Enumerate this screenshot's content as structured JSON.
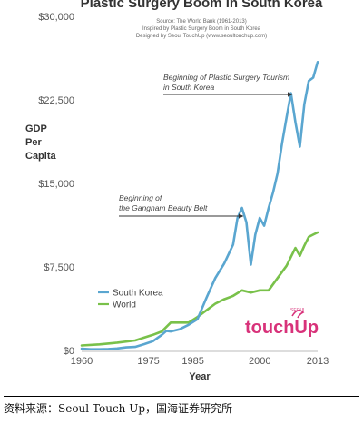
{
  "chart_data": {
    "type": "line",
    "title": "Plastic Surgery Boom in South Korea",
    "subtitle_lines": [
      "Source: The World Bank (1961-2013)",
      "Inspired by Plastic Surgery Boom in South Korea",
      "Designed by Seoul TouchUp (www.seoultouchup.com)"
    ],
    "xlabel": "Year",
    "ylabel_lines": [
      "GDP",
      "Per",
      "Capita"
    ],
    "xlim": [
      1960,
      2013
    ],
    "ylim": [
      0,
      30000
    ],
    "x_ticks": [
      "1960",
      "1975",
      "1985",
      "2000",
      "2013"
    ],
    "x_tick_values": [
      1960,
      1975,
      1985,
      2000,
      2013
    ],
    "y_ticks": [
      "$0",
      "$7,500",
      "$15,000",
      "$22,500",
      "$30,000"
    ],
    "y_tick_values": [
      0,
      7500,
      15000,
      22500,
      30000
    ],
    "grid": false,
    "legend_position": "bottom-left",
    "series": [
      {
        "name": "South Korea",
        "color": "#5aa6d0",
        "x": [
          1960,
          1962,
          1964,
          1966,
          1968,
          1970,
          1972,
          1974,
          1976,
          1978,
          1979,
          1980,
          1982,
          1984,
          1986,
          1988,
          1990,
          1992,
          1994,
          1995,
          1996,
          1997,
          1998,
          1999,
          2000,
          2001,
          2002,
          2003,
          2004,
          2005,
          2006,
          2007,
          2008,
          2009,
          2010,
          2011,
          2012,
          2013
        ],
        "values": [
          155,
          106,
          110,
          130,
          180,
          280,
          320,
          560,
          830,
          1400,
          1750,
          1700,
          1900,
          2300,
          2800,
          4700,
          6500,
          7800,
          9500,
          11900,
          12800,
          11500,
          7700,
          10400,
          11900,
          11200,
          12800,
          14200,
          15900,
          18600,
          20900,
          23100,
          20500,
          18300,
          22100,
          24200,
          24500,
          25900
        ]
      },
      {
        "name": "World",
        "color": "#79c14a",
        "x": [
          1960,
          1964,
          1968,
          1972,
          1976,
          1978,
          1980,
          1982,
          1984,
          1986,
          1988,
          1990,
          1992,
          1994,
          1996,
          1998,
          2000,
          2002,
          2004,
          2006,
          2008,
          2009,
          2010,
          2011,
          2012,
          2013
        ],
        "values": [
          450,
          550,
          700,
          900,
          1400,
          1700,
          2500,
          2500,
          2500,
          3000,
          3600,
          4200,
          4600,
          4900,
          5400,
          5200,
          5400,
          5400,
          6500,
          7600,
          9200,
          8500,
          9400,
          10200,
          10400,
          10600
        ]
      }
    ],
    "annotations": [
      {
        "lines": [
          "Beginning of Plastic Surgery Tourism",
          "in South Korea"
        ],
        "target_x": 2008,
        "target_y": 22600
      },
      {
        "lines": [
          "Beginning of",
          "the Gangnam Beauty Belt"
        ],
        "target_x": 1997,
        "target_y": 11800
      }
    ]
  },
  "logo": {
    "small": "SEOUL",
    "text": "touchUp",
    "color": "#d8327a"
  },
  "source_note": "资料来源：Seoul Touch Up，国海证券研究所"
}
